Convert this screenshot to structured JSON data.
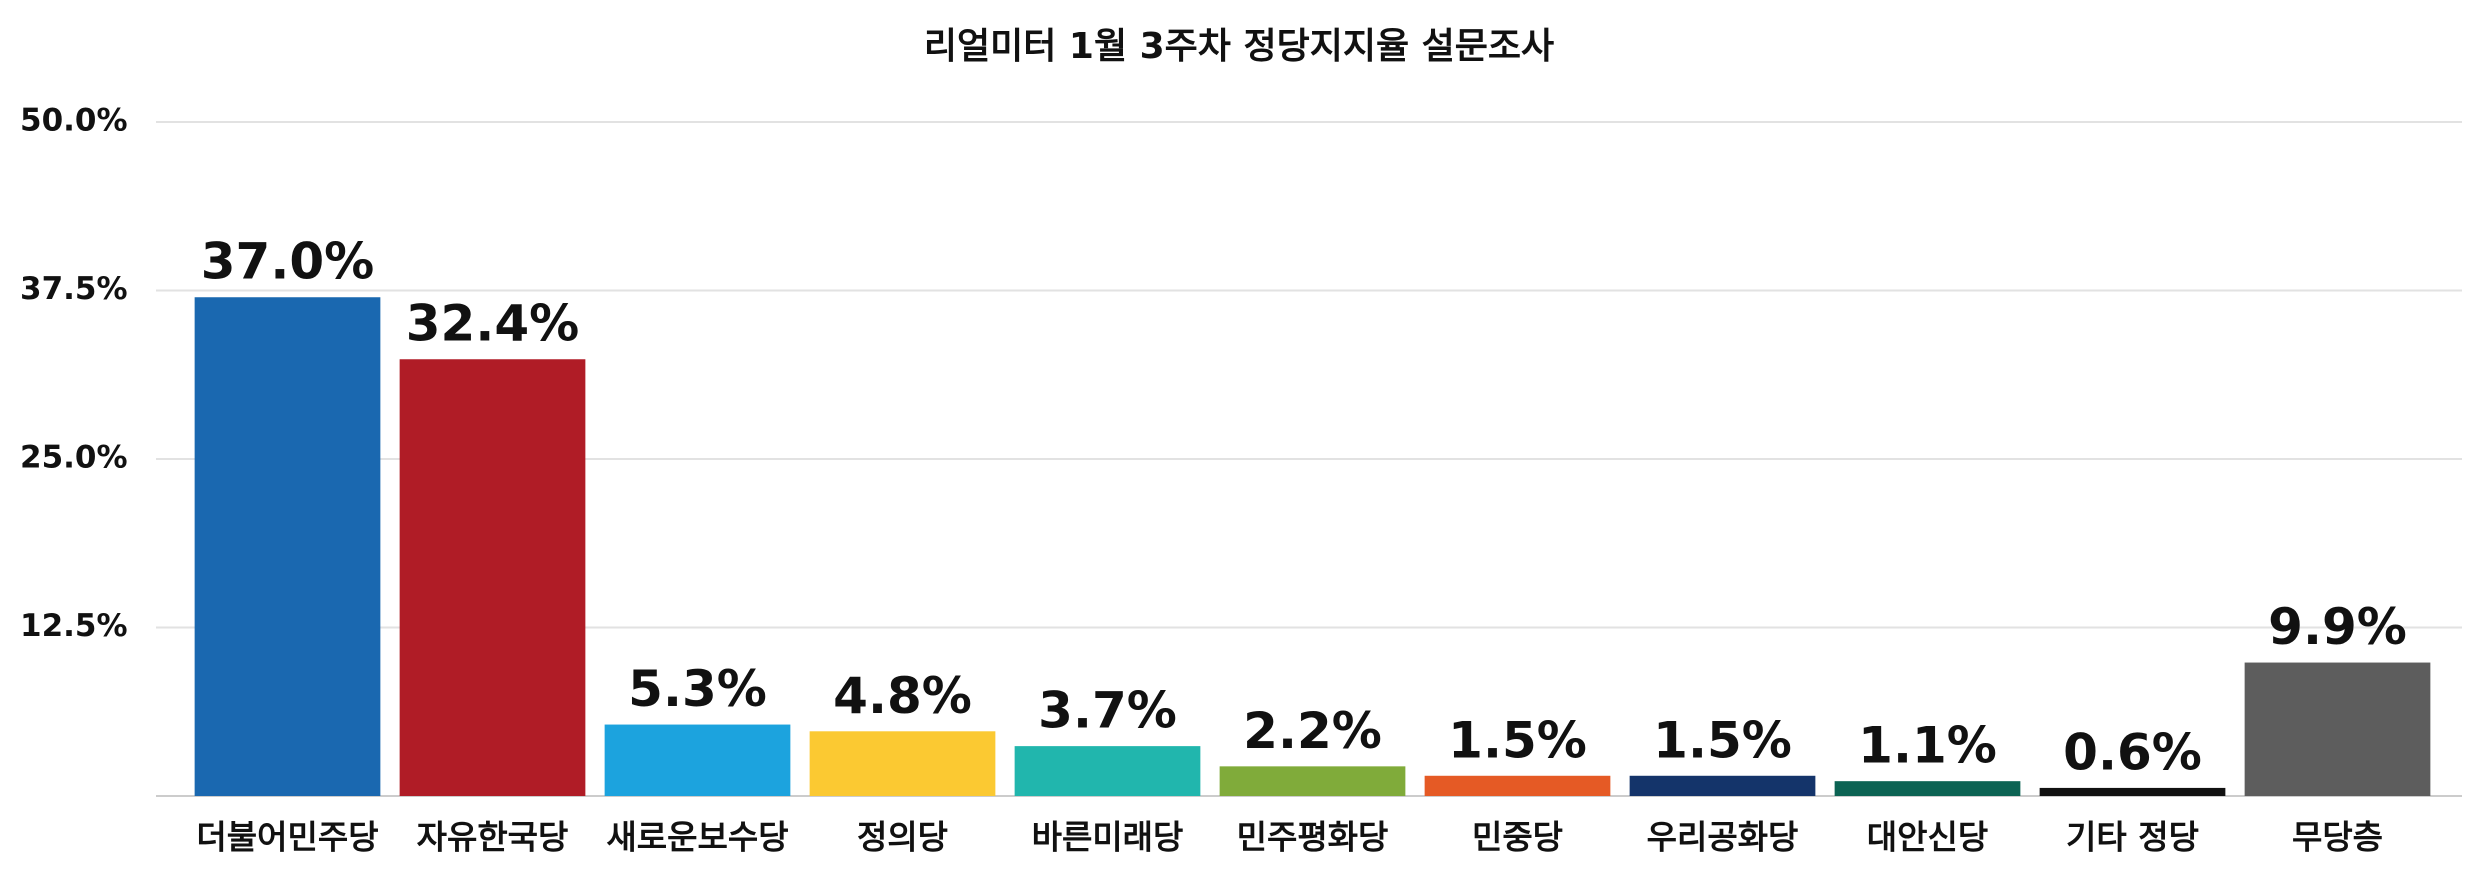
{
  "chart_data": {
    "type": "bar",
    "title": "리얼미터 1월 3주차 정당지지율 설문조사",
    "categories": [
      "더불어민주당",
      "자유한국당",
      "새로운보수당",
      "정의당",
      "바른미래당",
      "민주평화당",
      "민중당",
      "우리공화당",
      "대안신당",
      "기타 정당",
      "무당층"
    ],
    "values": [
      37.0,
      32.4,
      5.3,
      4.8,
      3.7,
      2.2,
      1.5,
      1.5,
      1.1,
      0.6,
      9.9
    ],
    "value_labels": [
      "37.0%",
      "32.4%",
      "5.3%",
      "4.8%",
      "3.7%",
      "2.2%",
      "1.5%",
      "1.5%",
      "1.1%",
      "0.6%",
      "9.9%"
    ],
    "colors": [
      "#1a68b0",
      "#b01c26",
      "#1ca3de",
      "#fbc932",
      "#21b6ad",
      "#80ab3a",
      "#e55a25",
      "#14346a",
      "#0c6353",
      "#111111",
      "#5d5d5d"
    ],
    "ylim": [
      0,
      50
    ],
    "yticks": [
      {
        "value": 12.5,
        "label": "12.5%"
      },
      {
        "value": 25,
        "label": "25.0%"
      },
      {
        "value": 37.5,
        "label": "37.5%"
      },
      {
        "value": 50,
        "label": "50.0%"
      }
    ],
    "grid": true
  }
}
